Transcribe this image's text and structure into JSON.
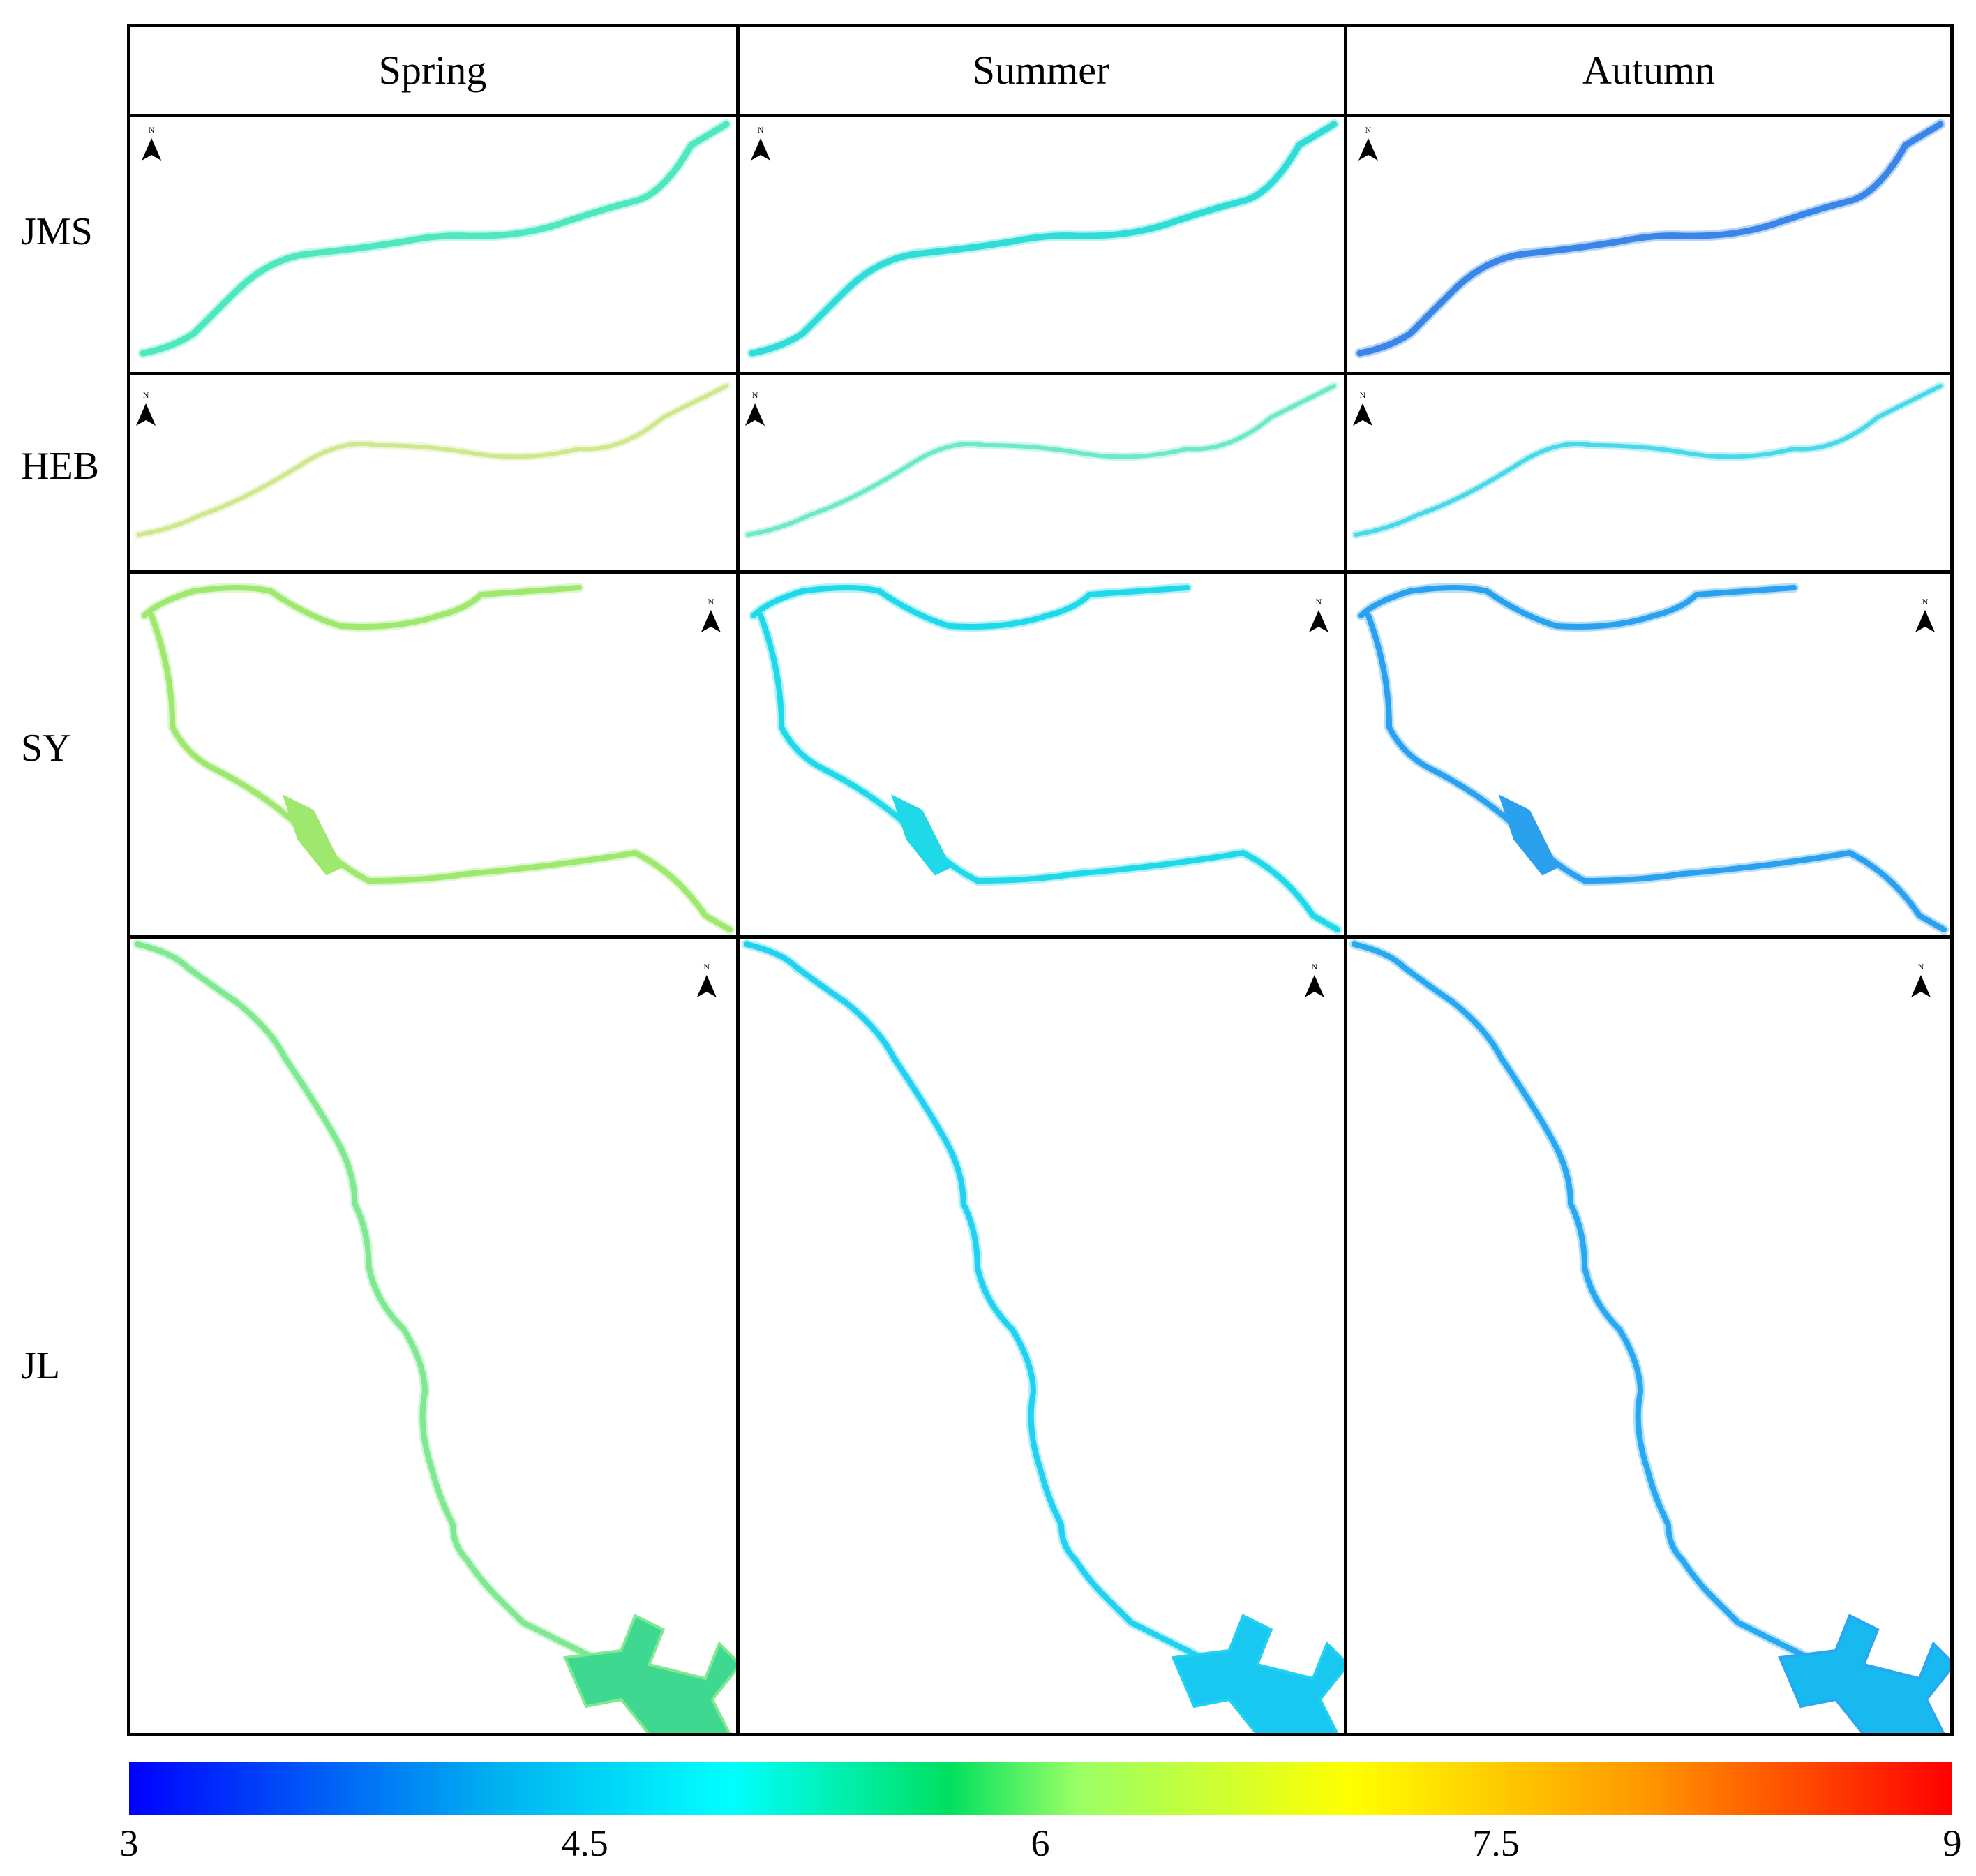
{
  "seasons": [
    "Spring",
    "Summer",
    "Autumn"
  ],
  "rows": [
    "JMS",
    "HEB",
    "SY",
    "JL"
  ],
  "north_label": "N",
  "colorbar": {
    "ticks": [
      "3",
      "4.5",
      "6",
      "7.5",
      "9"
    ],
    "min": 3,
    "max": 9
  },
  "colors": {
    "Spring": {
      "JMS": "#4fe7c0",
      "HEB": "#cfe890",
      "SY": "#9fe870",
      "JL": "#7fe890",
      "JL_lake": "#3fd890"
    },
    "Summer": {
      "JMS": "#2fdcd6",
      "HEB": "#6fe8c8",
      "SY": "#1fd8e8",
      "JL": "#22d0f0",
      "JL_lake": "#18c8f0"
    },
    "Autumn": {
      "JMS": "#3a86e8",
      "HEB": "#49d8e8",
      "SY": "#2aa0ee",
      "JL": "#28a8f0",
      "JL_lake": "#18b8f0"
    }
  }
}
